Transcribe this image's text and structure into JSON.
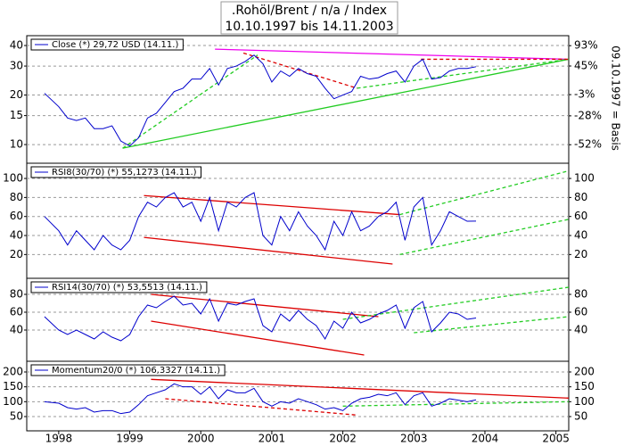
{
  "chart_data": [
    {
      "type": "line",
      "title": ".Rohöl/Brent / n/a / Index",
      "subtitle": "10.10.1997 bis 14.11.2003",
      "y2_label": "09.10.1997 = Basis",
      "log_scale": true,
      "grid": true,
      "x": [
        1997.8,
        1998,
        1998.125,
        1998.25,
        1998.375,
        1998.5,
        1998.625,
        1998.75,
        1998.875,
        1999,
        1999.125,
        1999.25,
        1999.375,
        1999.5,
        1999.625,
        1999.75,
        1999.875,
        2000,
        2000.125,
        2000.25,
        2000.375,
        2000.5,
        2000.625,
        2000.75,
        2000.875,
        2001,
        2001.125,
        2001.25,
        2001.375,
        2001.5,
        2001.625,
        2001.75,
        2001.875,
        2002,
        2002.125,
        2002.25,
        2002.375,
        2002.5,
        2002.625,
        2002.75,
        2002.875,
        2003,
        2003.125,
        2003.25,
        2003.375,
        2003.5,
        2003.625,
        2003.75,
        2003.875
      ],
      "xlim": [
        1997.55,
        2005.18
      ],
      "ylim": [
        7.7,
        45.9
      ],
      "yticks": [
        10,
        15,
        20,
        30,
        40
      ],
      "y2lim": [
        -63,
        122
      ],
      "y2ticks": [
        {
          "value": 93,
          "label": "93%"
        },
        {
          "value": 45,
          "label": "45%"
        },
        {
          "value": -3,
          "label": "-3%"
        },
        {
          "value": -28,
          "label": "-28%"
        },
        {
          "value": -52,
          "label": "-52%"
        }
      ],
      "series": [
        {
          "name": "Close (*) 29,72 USD (14.11.)",
          "color": "#0000cc",
          "values": [
            20.5,
            17,
            14.5,
            14,
            14.5,
            12.5,
            12.5,
            13,
            10.5,
            9.8,
            11,
            14.5,
            15.5,
            18,
            21,
            22,
            25,
            25,
            29,
            23,
            29,
            30,
            32,
            35,
            31,
            24,
            28,
            26,
            29,
            27,
            26,
            22,
            19,
            20,
            21,
            26,
            25,
            25.5,
            27,
            28,
            24,
            30,
            33,
            25,
            25.5,
            28,
            29,
            29,
            29.72
          ]
        }
      ],
      "trendlines": [
        {
          "x": [
            1998.9,
            2005.18
          ],
          "values": [
            9.5,
            33
          ],
          "color": "#22cc22",
          "dash": false
        },
        {
          "x": [
            1998.9,
            2000.8
          ],
          "values": [
            9.5,
            35
          ],
          "color": "#22cc22",
          "dash": true
        },
        {
          "x": [
            2000.2,
            2005.18
          ],
          "values": [
            38,
            33
          ],
          "color": "#ee00ee",
          "dash": false
        },
        {
          "x": [
            2000.6,
            2002.2
          ],
          "values": [
            36,
            22
          ],
          "color": "#dd0000",
          "dash": true
        },
        {
          "x": [
            2002.2,
            2005.18
          ],
          "values": [
            22,
            33
          ],
          "color": "#22cc22",
          "dash": true
        },
        {
          "x": [
            2003.1,
            2005.18
          ],
          "values": [
            33,
            33
          ],
          "color": "#dd0000",
          "dash": true
        }
      ]
    },
    {
      "type": "line",
      "grid": true,
      "xlim": [
        1997.55,
        2005.18
      ],
      "ylim": [
        -5,
        116
      ],
      "yticks": [
        20,
        40,
        60,
        80,
        100
      ],
      "x": [
        1997.8,
        1998,
        1998.125,
        1998.25,
        1998.375,
        1998.5,
        1998.625,
        1998.75,
        1998.875,
        1999,
        1999.125,
        1999.25,
        1999.375,
        1999.5,
        1999.625,
        1999.75,
        1999.875,
        2000,
        2000.125,
        2000.25,
        2000.375,
        2000.5,
        2000.625,
        2000.75,
        2000.875,
        2001,
        2001.125,
        2001.25,
        2001.375,
        2001.5,
        2001.625,
        2001.75,
        2001.875,
        2002,
        2002.125,
        2002.25,
        2002.375,
        2002.5,
        2002.625,
        2002.75,
        2002.875,
        2003,
        2003.125,
        2003.25,
        2003.375,
        2003.5,
        2003.625,
        2003.75,
        2003.875
      ],
      "series": [
        {
          "name": "RSI8(30/70) (*) 55,1273 (14.11.)",
          "color": "#0000cc",
          "values": [
            60,
            45,
            30,
            45,
            35,
            25,
            40,
            30,
            25,
            35,
            60,
            75,
            70,
            80,
            85,
            70,
            75,
            55,
            80,
            45,
            75,
            70,
            80,
            85,
            40,
            30,
            60,
            45,
            65,
            50,
            40,
            25,
            55,
            40,
            65,
            45,
            50,
            60,
            65,
            75,
            35,
            70,
            80,
            30,
            45,
            65,
            60,
            55,
            55.13
          ]
        }
      ],
      "trendlines": [
        {
          "x": [
            1999.2,
            2002.8
          ],
          "values": [
            82,
            62
          ],
          "color": "#dd0000",
          "dash": false
        },
        {
          "x": [
            1999.2,
            2002.7
          ],
          "values": [
            38,
            10
          ],
          "color": "#dd0000",
          "dash": false
        },
        {
          "x": [
            2002.8,
            2005.18
          ],
          "values": [
            62,
            108
          ],
          "color": "#22cc22",
          "dash": true
        },
        {
          "x": [
            2002.8,
            2005.18
          ],
          "values": [
            20,
            57
          ],
          "color": "#22cc22",
          "dash": true
        }
      ]
    },
    {
      "type": "line",
      "grid": true,
      "xlim": [
        1997.55,
        2005.18
      ],
      "ylim": [
        5,
        98
      ],
      "yticks": [
        40,
        60,
        80
      ],
      "x": [
        1997.8,
        1998,
        1998.125,
        1998.25,
        1998.375,
        1998.5,
        1998.625,
        1998.75,
        1998.875,
        1999,
        1999.125,
        1999.25,
        1999.375,
        1999.5,
        1999.625,
        1999.75,
        1999.875,
        2000,
        2000.125,
        2000.25,
        2000.375,
        2000.5,
        2000.625,
        2000.75,
        2000.875,
        2001,
        2001.125,
        2001.25,
        2001.375,
        2001.5,
        2001.625,
        2001.75,
        2001.875,
        2002,
        2002.125,
        2002.25,
        2002.375,
        2002.5,
        2002.625,
        2002.75,
        2002.875,
        2003,
        2003.125,
        2003.25,
        2003.375,
        2003.5,
        2003.625,
        2003.75,
        2003.875
      ],
      "series": [
        {
          "name": "RSI14(30/70) (*) 53,5513 (14.11.)",
          "color": "#0000cc",
          "values": [
            55,
            40,
            35,
            40,
            35,
            30,
            38,
            32,
            28,
            35,
            55,
            68,
            65,
            72,
            78,
            68,
            70,
            58,
            75,
            50,
            70,
            68,
            72,
            75,
            45,
            38,
            58,
            50,
            62,
            52,
            45,
            30,
            50,
            42,
            60,
            48,
            52,
            58,
            62,
            68,
            42,
            65,
            72,
            38,
            48,
            60,
            58,
            52,
            53.55
          ]
        }
      ],
      "trendlines": [
        {
          "x": [
            1999.3,
            2002.5
          ],
          "values": [
            80,
            55
          ],
          "color": "#dd0000",
          "dash": false
        },
        {
          "x": [
            1999.3,
            2002.3
          ],
          "values": [
            50,
            12
          ],
          "color": "#dd0000",
          "dash": false
        },
        {
          "x": [
            2002,
            2005.18
          ],
          "values": [
            52,
            88
          ],
          "color": "#22cc22",
          "dash": true
        },
        {
          "x": [
            2003,
            2005.18
          ],
          "values": [
            37,
            55
          ],
          "color": "#22cc22",
          "dash": true
        }
      ]
    },
    {
      "type": "line",
      "grid": true,
      "xlim": [
        1997.55,
        2005.18
      ],
      "ylim": [
        2,
        236
      ],
      "yticks": [
        50,
        100,
        150,
        200
      ],
      "xticks": [
        1998,
        1999,
        2000,
        2001,
        2002,
        2003,
        2004,
        2005
      ],
      "x": [
        1997.8,
        1998,
        1998.125,
        1998.25,
        1998.375,
        1998.5,
        1998.625,
        1998.75,
        1998.875,
        1999,
        1999.125,
        1999.25,
        1999.375,
        1999.5,
        1999.625,
        1999.75,
        1999.875,
        2000,
        2000.125,
        2000.25,
        2000.375,
        2000.5,
        2000.625,
        2000.75,
        2000.875,
        2001,
        2001.125,
        2001.25,
        2001.375,
        2001.5,
        2001.625,
        2001.75,
        2001.875,
        2002,
        2002.125,
        2002.25,
        2002.375,
        2002.5,
        2002.625,
        2002.75,
        2002.875,
        2003,
        2003.125,
        2003.25,
        2003.375,
        2003.5,
        2003.625,
        2003.75,
        2003.875
      ],
      "series": [
        {
          "name": "Momentum20/0 (*) 106,3327 (14.11.)",
          "color": "#0000cc",
          "values": [
            100,
            95,
            80,
            75,
            80,
            65,
            70,
            70,
            60,
            65,
            90,
            120,
            130,
            140,
            160,
            150,
            150,
            125,
            150,
            110,
            140,
            130,
            130,
            145,
            100,
            85,
            100,
            95,
            110,
            100,
            90,
            75,
            80,
            70,
            95,
            110,
            115,
            125,
            120,
            130,
            90,
            120,
            130,
            85,
            95,
            110,
            105,
            100,
            106.33
          ]
        }
      ],
      "trendlines": [
        {
          "x": [
            1999.3,
            2005.18
          ],
          "values": [
            175,
            112
          ],
          "color": "#dd0000",
          "dash": false
        },
        {
          "x": [
            1999.5,
            2002.2
          ],
          "values": [
            110,
            55
          ],
          "color": "#dd0000",
          "dash": true
        },
        {
          "x": [
            2002,
            2005.18
          ],
          "values": [
            85,
            100
          ],
          "color": "#22cc22",
          "dash": true
        }
      ]
    }
  ]
}
